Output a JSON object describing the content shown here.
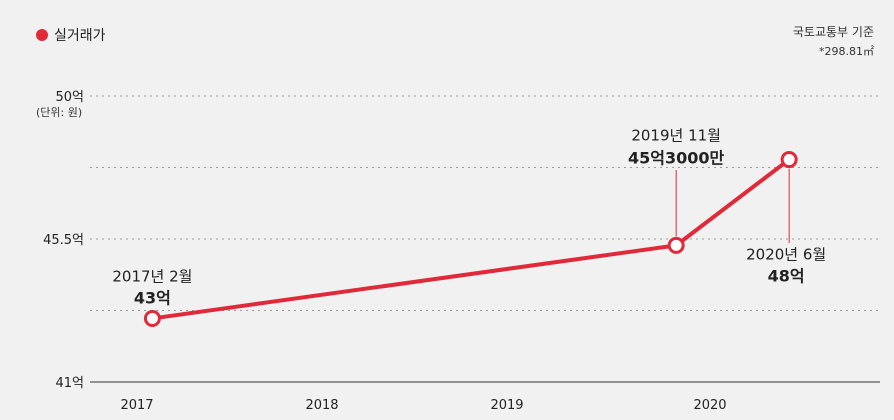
{
  "legend": {
    "label": "실거래가",
    "color": "#e02a3a"
  },
  "source": {
    "line1": "국토교통부 기준",
    "line2": "*298.81㎡"
  },
  "unit_label": "(단위: 원)",
  "chart_data": {
    "type": "line",
    "title": "",
    "xlabel": "",
    "ylabel": "",
    "x_ticks": [
      "2017",
      "2018",
      "2019",
      "2020"
    ],
    "y_ticks": [
      "50억",
      "45.5억",
      "41억"
    ],
    "ylim": [
      41,
      50
    ],
    "grid": true,
    "series": [
      {
        "name": "실거래가",
        "color": "#e02a3a",
        "points": [
          {
            "x": "2017-02",
            "y": 43,
            "date_label": "2017년 2월",
            "value_label": "43억"
          },
          {
            "x": "2019-11",
            "y": 45.3,
            "date_label": "2019년 11월",
            "value_label": "45억3000만"
          },
          {
            "x": "2020-06",
            "y": 48,
            "date_label": "2020년 6월",
            "value_label": "48억"
          }
        ]
      }
    ]
  }
}
